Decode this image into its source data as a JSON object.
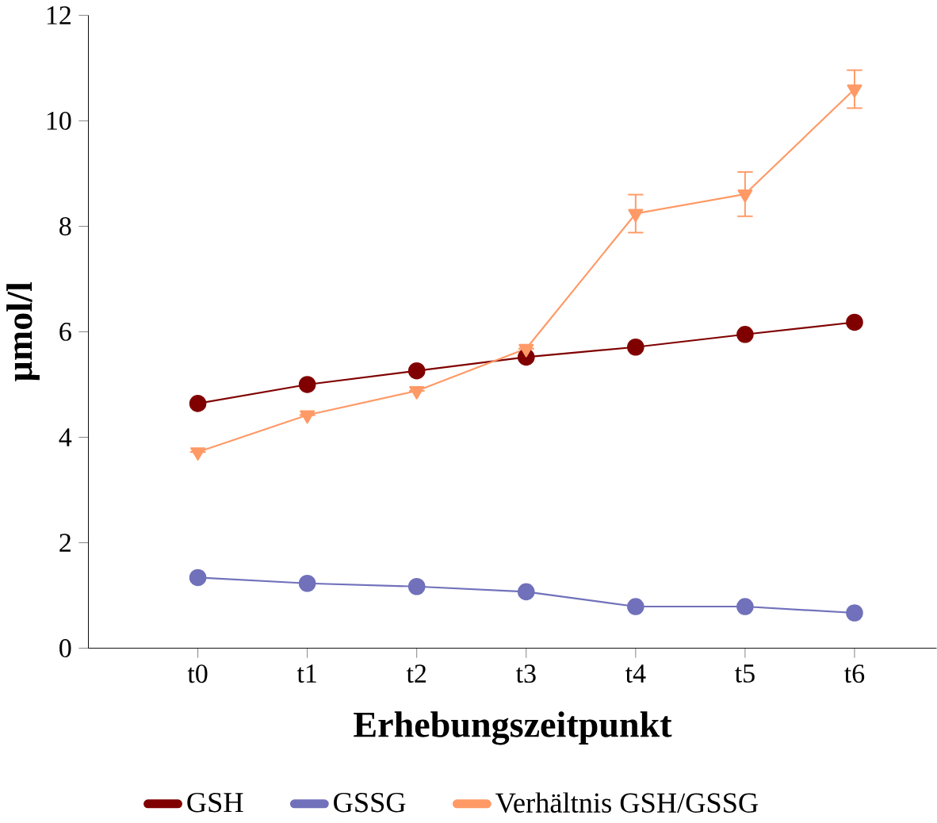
{
  "chart_data": {
    "type": "line",
    "xlabel": "Erhebungszeitpunkt",
    "ylabel": "µmol/l",
    "categories": [
      "t0",
      "t1",
      "t2",
      "t3",
      "t4",
      "t5",
      "t6"
    ],
    "series": [
      {
        "name": "GSH",
        "color": "#800000",
        "marker": "circle",
        "values": [
          4.64,
          5.0,
          5.26,
          5.52,
          5.71,
          5.95,
          6.18
        ]
      },
      {
        "name": "GSSG",
        "color": "#7070bb",
        "marker": "circle",
        "values": [
          1.34,
          1.23,
          1.17,
          1.07,
          0.79,
          0.79,
          0.67
        ]
      },
      {
        "name": "Verhältnis GSH/GSSG",
        "color": "#ff9966",
        "marker": "triangle",
        "values": [
          3.72,
          4.42,
          4.88,
          5.68,
          8.24,
          8.61,
          10.6
        ],
        "errors": [
          null,
          null,
          null,
          null,
          0.36,
          0.42,
          0.36
        ]
      }
    ],
    "ylim": [
      0,
      12
    ],
    "yticks": [
      0,
      2,
      4,
      6,
      8,
      10,
      12
    ],
    "grid": false,
    "legend": "bottom"
  }
}
